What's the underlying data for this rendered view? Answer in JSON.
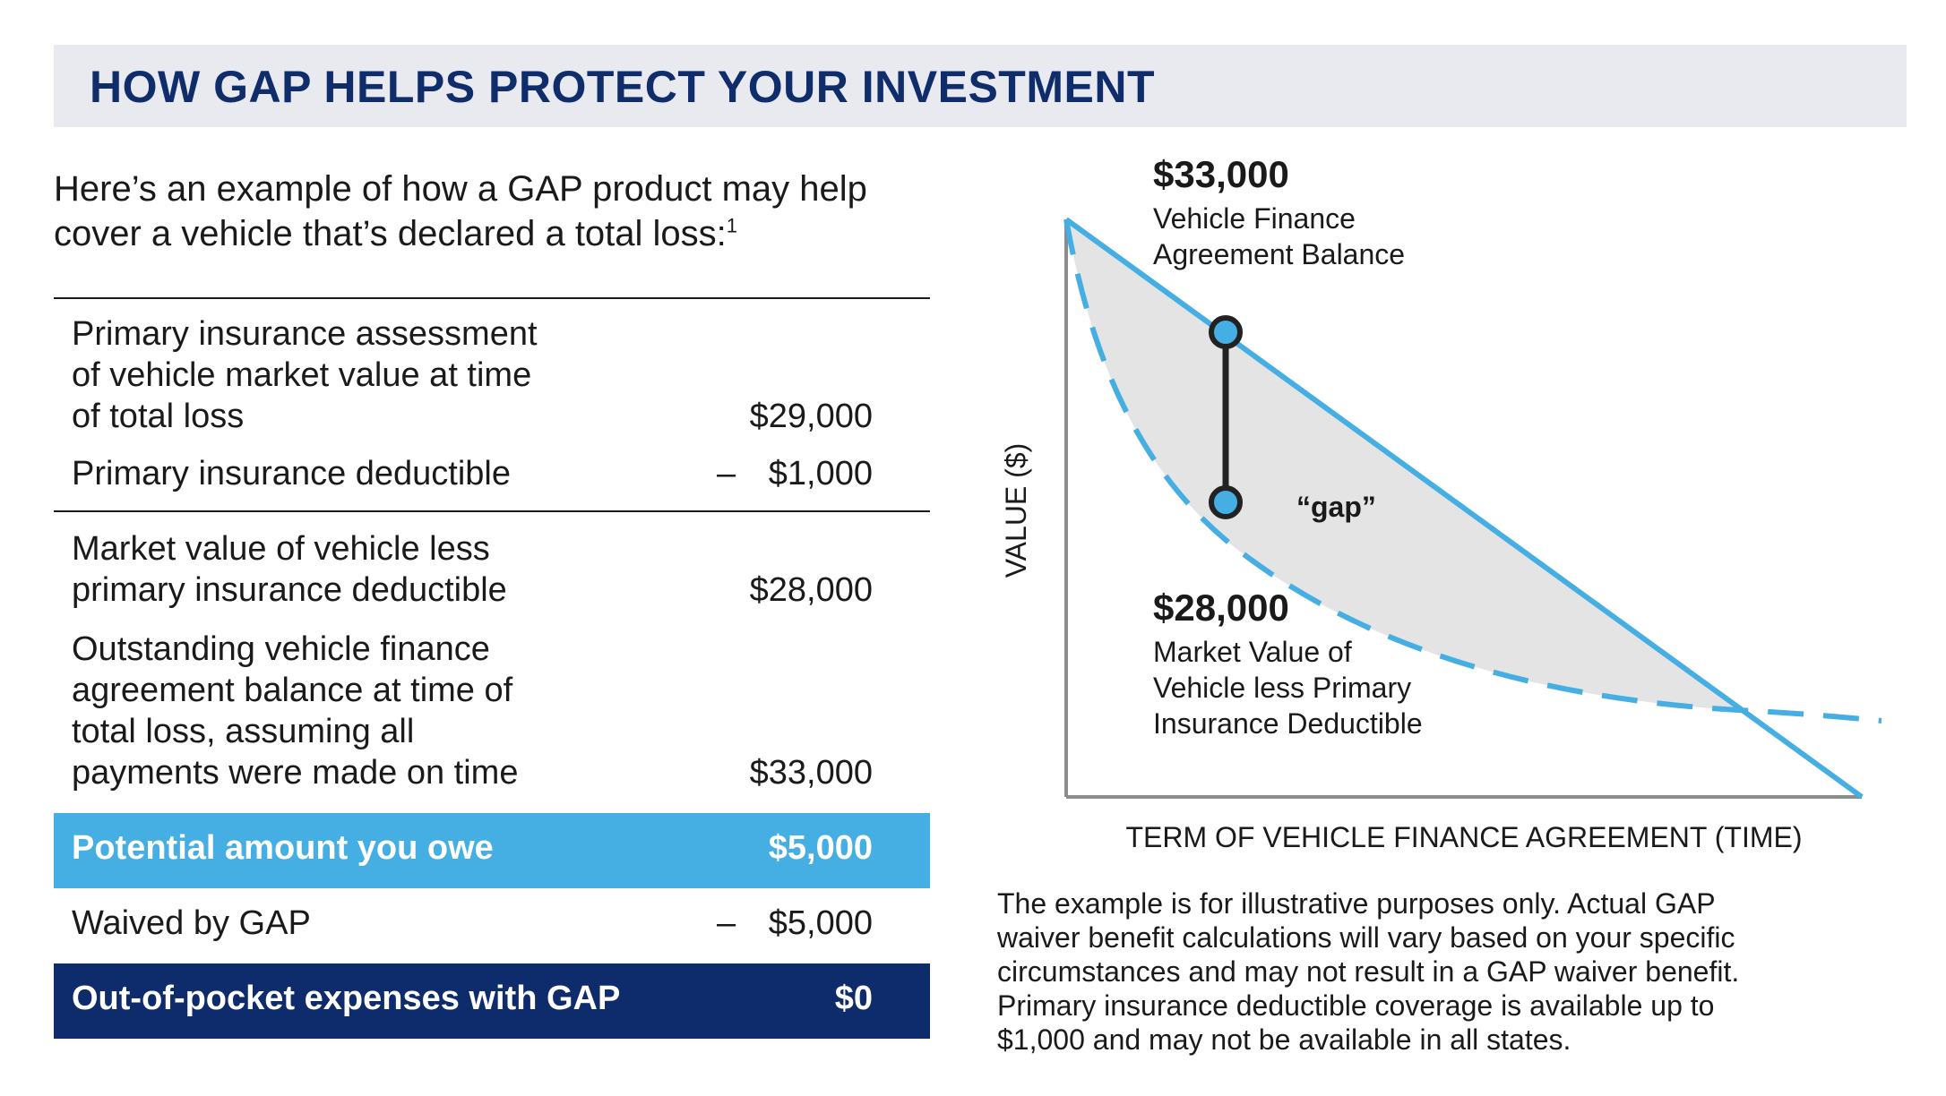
{
  "header": {
    "title": "HOW GAP HELPS PROTECT YOUR INVESTMENT"
  },
  "intro": {
    "text_line1": "Here’s an example of how a GAP product may help",
    "text_line2": "cover a vehicle that’s declared a total loss:",
    "footnote_mark": "1"
  },
  "table": {
    "rows": [
      {
        "label_lines": [
          "Primary insurance assessment",
          "of vehicle market value at time",
          "of total loss"
        ],
        "sign": "",
        "amount": "$29,000"
      },
      {
        "label_lines": [
          "Primary insurance deductible"
        ],
        "sign": "–",
        "amount": "$1,000"
      },
      {
        "label_lines": [
          "Market value of vehicle less",
          "primary insurance deductible"
        ],
        "sign": "",
        "amount": "$28,000"
      },
      {
        "label_lines": [
          "Outstanding vehicle finance",
          "agreement balance at time of",
          "total loss, assuming all",
          "payments were made on time"
        ],
        "sign": "",
        "amount": "$33,000"
      }
    ],
    "owe": {
      "label": "Potential amount you owe",
      "amount": "$5,000"
    },
    "waived": {
      "label": "Waived by GAP",
      "sign": "–",
      "amount": "$5,000"
    },
    "out_of_pocket": {
      "label": "Out-of-pocket expenses with GAP",
      "amount": "$0"
    }
  },
  "chart_data": {
    "type": "line",
    "title": "",
    "xlabel": "TERM OF VEHICLE FINANCE AGREEMENT (TIME)",
    "ylabel": "VALUE ($)",
    "series": [
      {
        "name": "Vehicle Finance Agreement Balance",
        "style": "solid",
        "color": "#45aee2"
      },
      {
        "name": "Market Value of Vehicle less Primary Insurance Deductible",
        "style": "dashed",
        "color": "#45aee2"
      }
    ],
    "annotations": {
      "top_value": "$33,000",
      "top_label_lines": [
        "Vehicle Finance",
        "Agreement Balance"
      ],
      "bottom_value": "$28,000",
      "bottom_label_lines": [
        "Market Value of",
        "Vehicle less Primary",
        "Insurance Deductible"
      ],
      "gap_label": "“gap”"
    },
    "colors": {
      "line": "#45aee2",
      "fill": "#e4e4e4",
      "axis": "#8c8c8c",
      "marker_stroke": "#222222"
    }
  },
  "note": {
    "lines": [
      "The example is for illustrative purposes only. Actual GAP",
      "waiver benefit calculations will vary based on your specific",
      "circumstances and may not result in a GAP waiver benefit.",
      "Primary insurance deductible coverage is available up to",
      "$1,000 and may not be available in all states."
    ]
  }
}
